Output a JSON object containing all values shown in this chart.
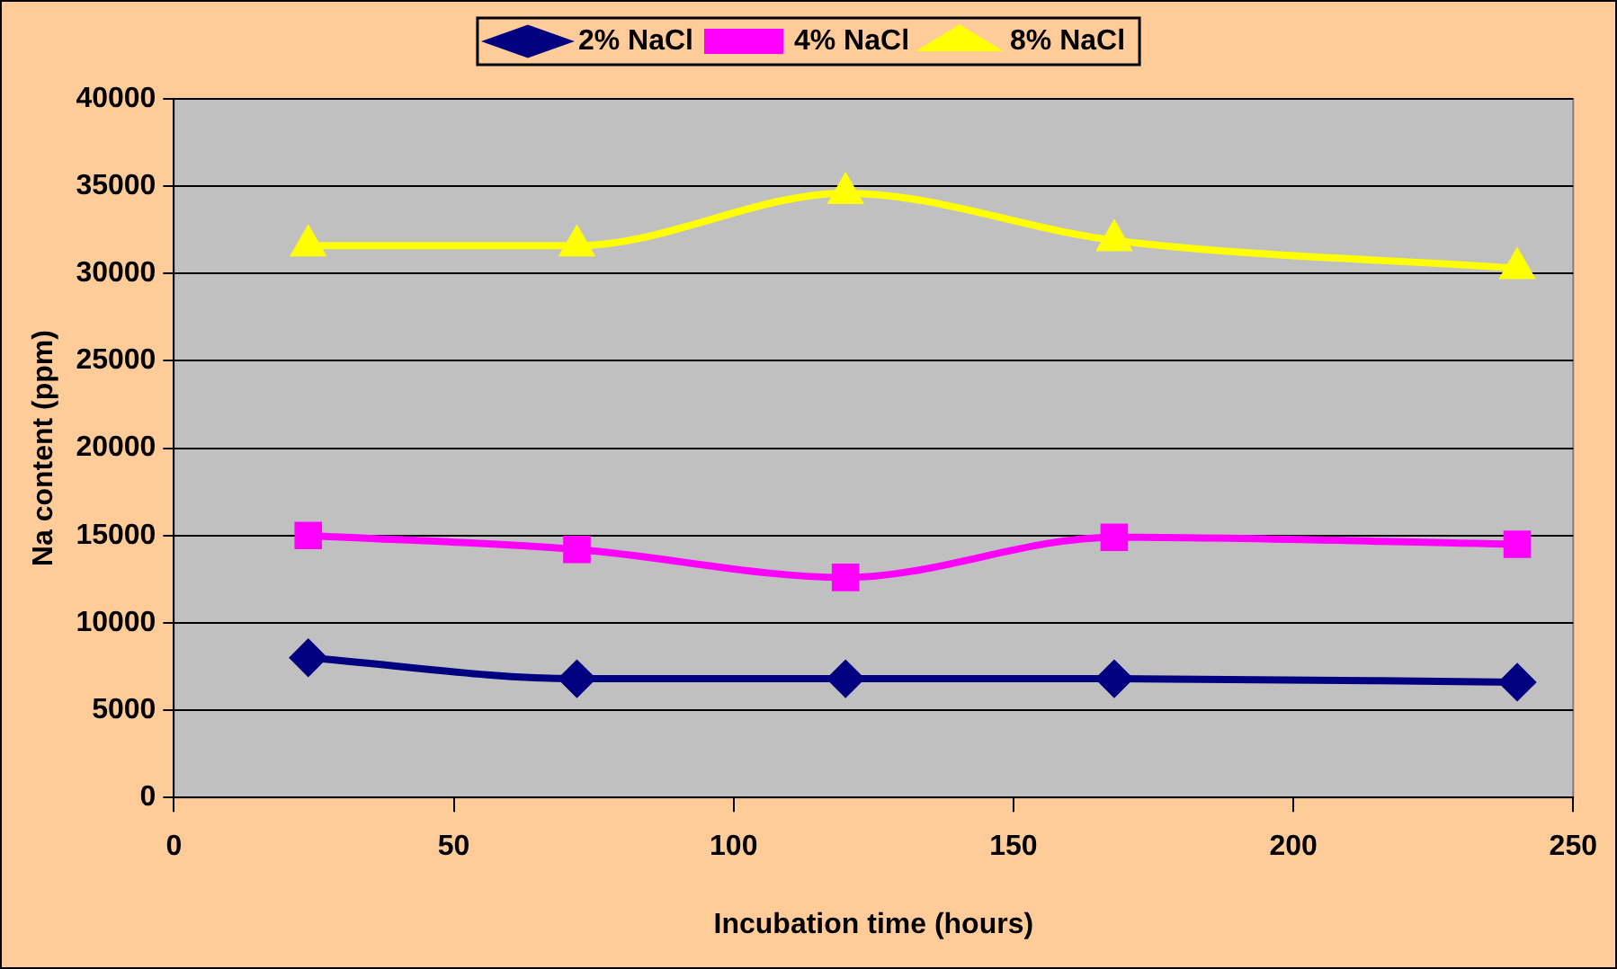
{
  "chart_data": {
    "type": "line",
    "xlabel": "Incubation time (hours)",
    "ylabel": "Na content (ppm)",
    "x": [
      24,
      72,
      120,
      168,
      240
    ],
    "series": [
      {
        "name": "2% NaCl",
        "color": "#000080",
        "marker": "diamond",
        "values": [
          8000,
          6800,
          6800,
          6800,
          6600
        ]
      },
      {
        "name": "4% NaCl",
        "color": "#ff00ff",
        "marker": "square",
        "values": [
          15000,
          14200,
          12600,
          14900,
          14500
        ]
      },
      {
        "name": "8% NaCl",
        "color": "#ffff00",
        "marker": "triangle",
        "values": [
          31600,
          31600,
          34600,
          31900,
          30300
        ]
      }
    ],
    "xlim": [
      0,
      250
    ],
    "xticks": [
      0,
      50,
      100,
      150,
      200,
      250
    ],
    "ylim": [
      0,
      40000
    ],
    "yticks": [
      0,
      5000,
      10000,
      15000,
      20000,
      25000,
      30000,
      35000,
      40000
    ],
    "grid": "y",
    "legend": "top"
  }
}
